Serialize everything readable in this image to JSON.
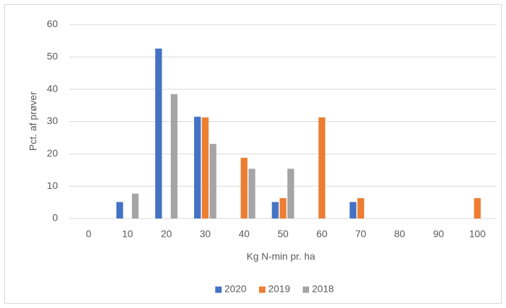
{
  "chart_data": {
    "type": "bar",
    "x_label": "Kg N-min pr. ha",
    "y_label": "Pct. af prøver",
    "categories": [
      "0",
      "10",
      "20",
      "30",
      "40",
      "50",
      "60",
      "70",
      "80",
      "90",
      "100"
    ],
    "series": [
      {
        "name": "2020",
        "color": "#4472c4",
        "values": [
          0,
          5.1,
          52.6,
          31.5,
          0,
          5.1,
          0,
          5.1,
          0,
          0,
          0
        ]
      },
      {
        "name": "2019",
        "color": "#ed7d31",
        "values": [
          0,
          0,
          0,
          31.3,
          18.8,
          6.3,
          31.3,
          6.3,
          0,
          0,
          6.3
        ]
      },
      {
        "name": "2018",
        "color": "#a5a5a5",
        "values": [
          0,
          7.7,
          38.5,
          23.1,
          15.4,
          15.4,
          0,
          0,
          0,
          0,
          0
        ]
      }
    ],
    "ylim": [
      0,
      60
    ],
    "yticks": [
      0,
      10,
      20,
      30,
      40,
      50,
      60
    ],
    "grid": true,
    "legend": "bottom"
  }
}
